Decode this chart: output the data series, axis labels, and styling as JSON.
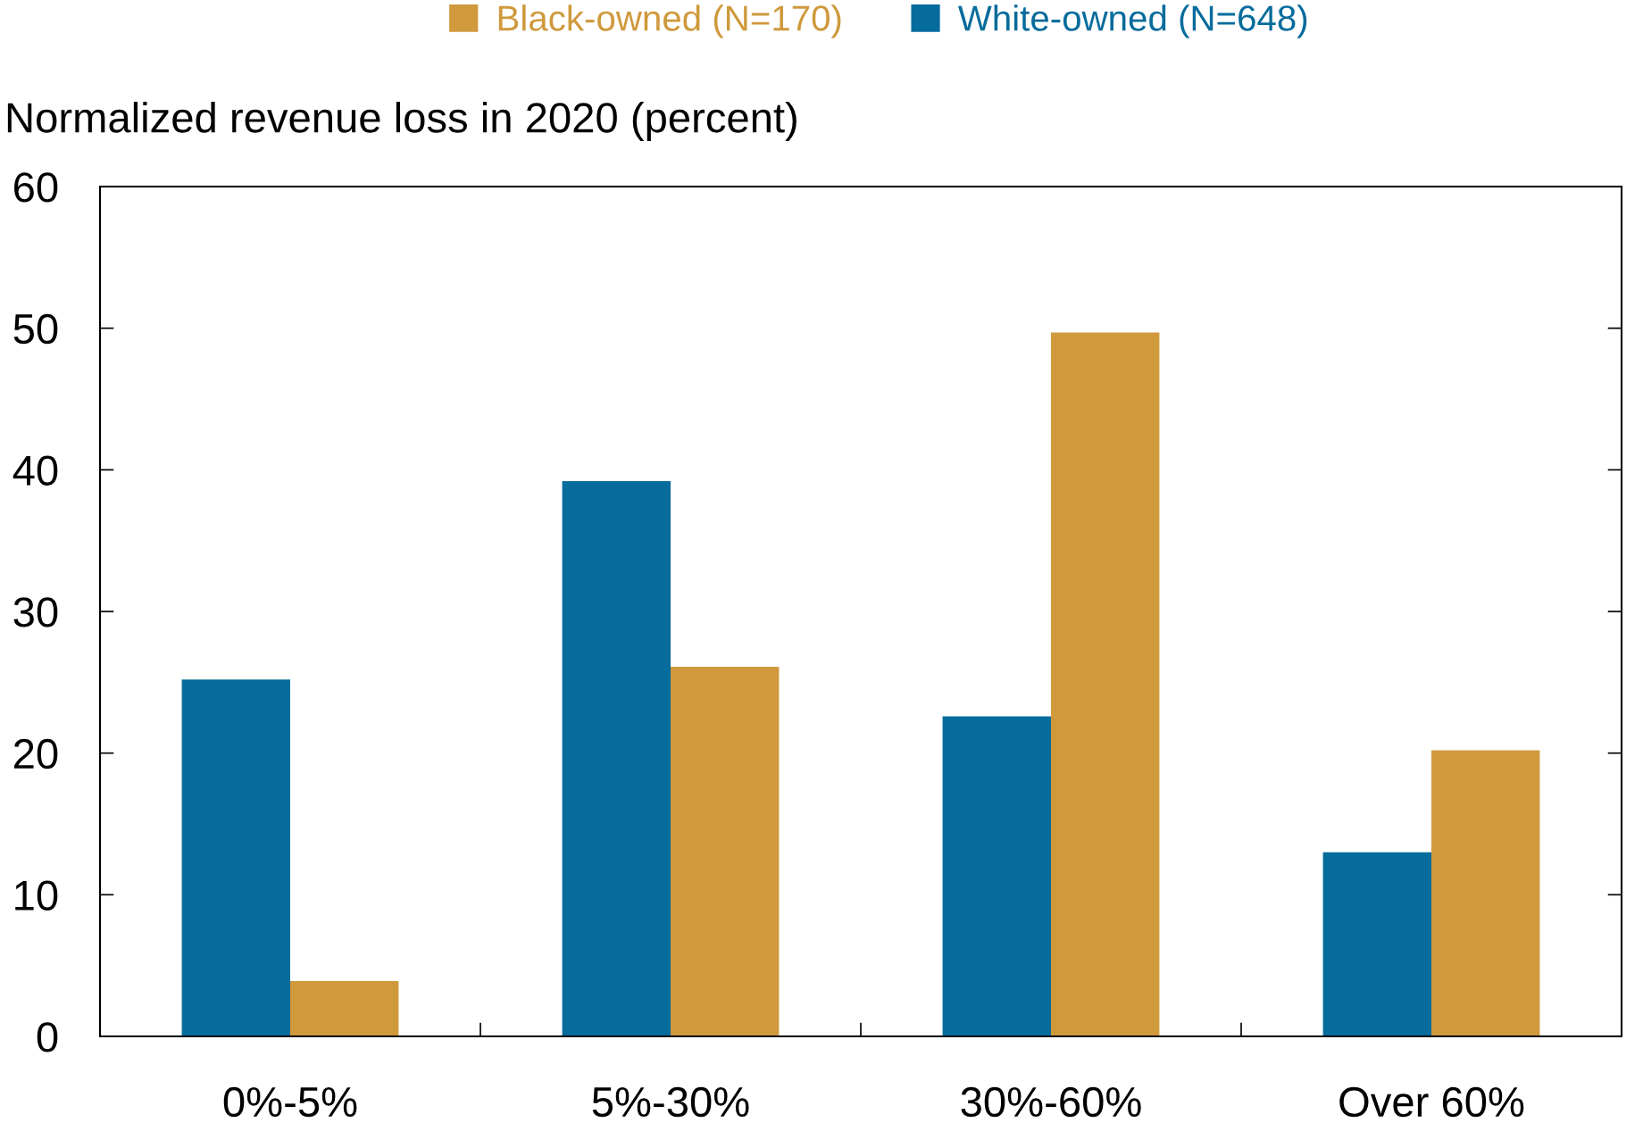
{
  "chart_data": {
    "type": "bar",
    "ylabel": "Normalized revenue loss in 2020 (percent)",
    "categories": [
      "0%-5%",
      "5%-30%",
      "30%-60%",
      "Over 60%"
    ],
    "series": [
      {
        "name": "White-owned (N=648)",
        "color": "#066c9c",
        "values": [
          25.2,
          39.2,
          22.6,
          13.0
        ]
      },
      {
        "name": "Black-owned (N=170)",
        "color": "#cf993c",
        "values": [
          3.9,
          26.1,
          49.7,
          20.2
        ]
      }
    ],
    "ylim": [
      0,
      60
    ],
    "yticks": [
      0,
      10,
      20,
      30,
      40,
      50,
      60
    ],
    "legend": "top"
  }
}
